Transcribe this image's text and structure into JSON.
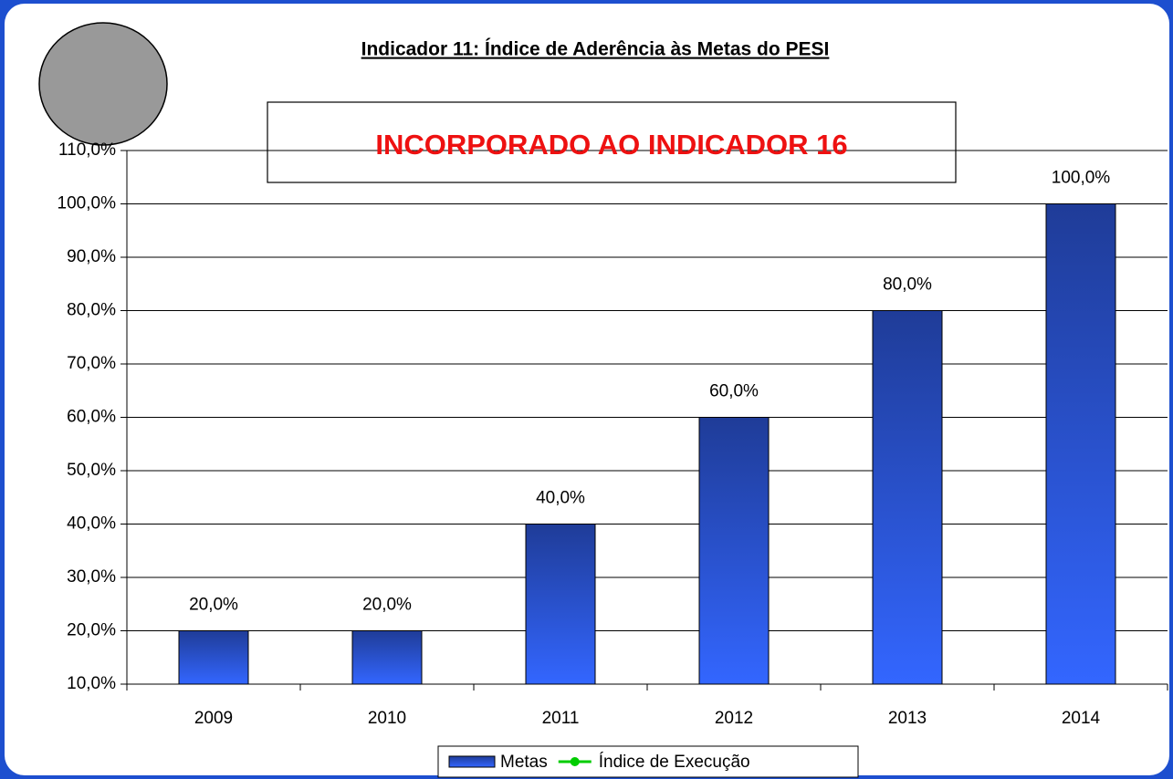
{
  "chart_data": {
    "type": "bar",
    "title": "Indicador 11: Índice de Aderência às Metas do PESI",
    "annotation": "INCORPORADO AO INDICADOR 16",
    "categories": [
      "2009",
      "2010",
      "2011",
      "2012",
      "2013",
      "2014"
    ],
    "series": [
      {
        "name": "Metas",
        "type": "bar",
        "color": "#2f5ff0",
        "values": [
          20,
          20,
          40,
          60,
          80,
          100
        ],
        "value_labels": [
          "20,0%",
          "20,0%",
          "40,0%",
          "60,0%",
          "80,0%",
          "100,0%"
        ]
      },
      {
        "name": "Índice de Execução",
        "type": "line",
        "color": "#00cc00",
        "values": [
          null,
          null,
          null,
          null,
          null,
          null
        ]
      }
    ],
    "ylim": [
      10,
      110
    ],
    "yticks": [
      {
        "value": 10,
        "label": "10,0%"
      },
      {
        "value": 20,
        "label": "20,0%"
      },
      {
        "value": 30,
        "label": "30,0%"
      },
      {
        "value": 40,
        "label": "40,0%"
      },
      {
        "value": 50,
        "label": "50,0%"
      },
      {
        "value": 60,
        "label": "60,0%"
      },
      {
        "value": 70,
        "label": "70,0%"
      },
      {
        "value": 80,
        "label": "80,0%"
      },
      {
        "value": 90,
        "label": "90,0%"
      },
      {
        "value": 100,
        "label": "100,0%"
      },
      {
        "value": 110,
        "label": "110,0%"
      }
    ],
    "grid": true,
    "legend": "bottom"
  }
}
